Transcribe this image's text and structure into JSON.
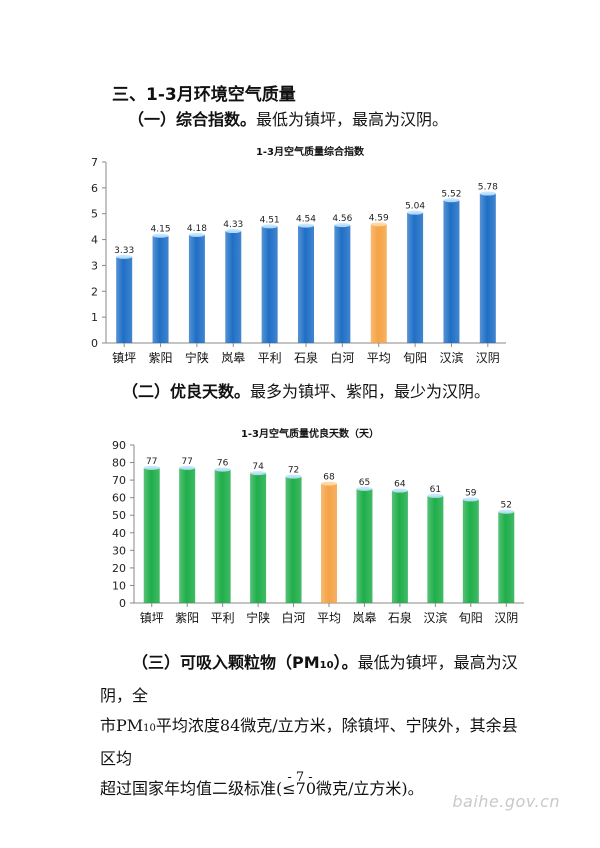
{
  "section_heading": "三、1-3月环境空气质量",
  "part1": {
    "lead": "（一）综合指数。",
    "rest": "最低为镇坪，最高为汉阴。"
  },
  "part2": {
    "lead": "（二）优良天数。",
    "rest": "最多为镇坪、紫阳，最少为汉阴。"
  },
  "part3": {
    "lead_prefix": "（三）可吸入颗粒物（PM",
    "lead_sub": "10",
    "lead_suffix": "）。",
    "line1_rest": "最低为镇坪，最高为汉阴，全",
    "line2_a": "市PM",
    "line2_sub": "10",
    "line2_b": "平均浓度84微克/立方米，除镇坪、宁陕外，其余县区均",
    "line3": "超过国家年均值二级标准(≤70微克/立方米)。"
  },
  "page_number": "- 7 -",
  "watermark": "baihe.gov.cn",
  "colors": {
    "blue": "#1f6fc6",
    "green": "#1fae4a",
    "orange": "#f5a345"
  },
  "chart_data": [
    {
      "type": "bar",
      "title": "1-3月空气质量综合指数",
      "categories": [
        "镇坪",
        "紫阳",
        "宁陕",
        "岚皋",
        "平利",
        "石泉",
        "白河",
        "平均",
        "旬阳",
        "汉滨",
        "汉阴"
      ],
      "values": [
        3.33,
        4.15,
        4.18,
        4.33,
        4.51,
        4.54,
        4.56,
        4.59,
        5.04,
        5.52,
        5.78
      ],
      "value_labels": [
        "3.33",
        "4.15",
        "4.18",
        "4.33",
        "4.51",
        "4.54",
        "4.56",
        "4.59",
        "5.04",
        "5.52",
        "5.78"
      ],
      "highlight": "平均",
      "ylim": [
        0,
        7
      ],
      "yticks": [
        "0",
        "1",
        "2",
        "3",
        "4",
        "5",
        "6",
        "7"
      ],
      "grid": false
    },
    {
      "type": "bar",
      "title": "1-3月空气质量优良天数（天）",
      "categories": [
        "镇坪",
        "紫阳",
        "平利",
        "宁陕",
        "白河",
        "平均",
        "岚皋",
        "石泉",
        "汉滨",
        "旬阳",
        "汉阴"
      ],
      "values": [
        77,
        77,
        76,
        74,
        72,
        68,
        65,
        64,
        61,
        59,
        52
      ],
      "value_labels": [
        "77",
        "77",
        "76",
        "74",
        "72",
        "68",
        "65",
        "64",
        "61",
        "59",
        "52"
      ],
      "highlight": "平均",
      "ylim": [
        0,
        90
      ],
      "yticks": [
        "0",
        "10",
        "20",
        "30",
        "40",
        "50",
        "60",
        "70",
        "80",
        "90"
      ],
      "grid": false
    }
  ]
}
